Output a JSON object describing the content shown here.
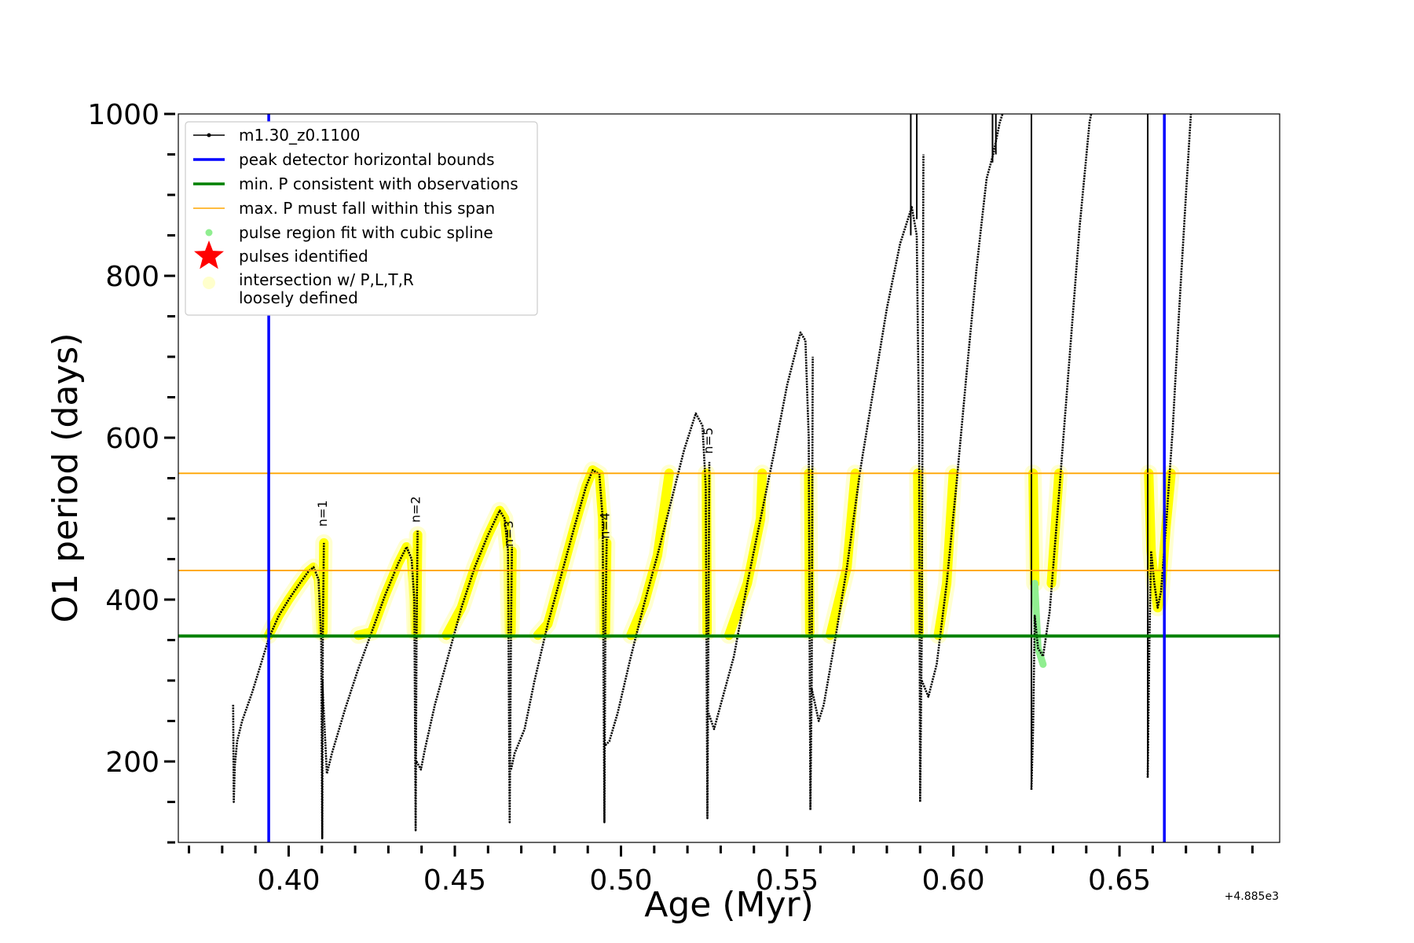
{
  "chart_data": {
    "type": "line",
    "xlabel": "Age (Myr)",
    "ylabel": "O1 period (days)",
    "x_offset_label": "+4.885e3",
    "xlim": [
      0.3668,
      0.6982
    ],
    "ylim": [
      100,
      1000
    ],
    "x_ticks": [
      0.4,
      0.45,
      0.5,
      0.55,
      0.6,
      0.65
    ],
    "x_tick_labels": [
      "0.40",
      "0.45",
      "0.50",
      "0.55",
      "0.60",
      "0.65"
    ],
    "x_minor_ticks": [
      0.37,
      0.38,
      0.39,
      0.41,
      0.42,
      0.43,
      0.44,
      0.46,
      0.47,
      0.48,
      0.49,
      0.51,
      0.52,
      0.53,
      0.54,
      0.56,
      0.57,
      0.58,
      0.59,
      0.61,
      0.62,
      0.63,
      0.64,
      0.66,
      0.67,
      0.68,
      0.69
    ],
    "y_ticks": [
      200,
      400,
      600,
      800,
      1000
    ],
    "y_tick_labels": [
      "200",
      "400",
      "600",
      "800",
      "1000"
    ],
    "y_minor_ticks": [
      100,
      150,
      250,
      300,
      350,
      450,
      500,
      550,
      650,
      700,
      750,
      850,
      900,
      950
    ],
    "legend": {
      "placement": "top-left",
      "entries": [
        {
          "label": "m1.30_z0.1100",
          "kind": "line-dot",
          "color": "#000000"
        },
        {
          "label": "peak detector horizontal bounds",
          "kind": "line",
          "color": "#0000ff"
        },
        {
          "label": "min. P consistent with observations",
          "kind": "line",
          "color": "#008000"
        },
        {
          "label": "max. P must fall within this span",
          "kind": "thin-line",
          "color": "#ffa500"
        },
        {
          "label": "pulse region fit with cubic spline",
          "kind": "dot",
          "color": "#90ee90"
        },
        {
          "label": "pulses identified",
          "kind": "star",
          "color": "#ff0000"
        },
        {
          "label": "intersection w/ P,L,T,R",
          "label2": "loosely defined",
          "kind": "blob",
          "color": "#ffffcc"
        }
      ]
    },
    "vertical_lines": [
      {
        "name": "peak detector horizontal bounds",
        "x": 0.394,
        "color": "#0000ff"
      },
      {
        "name": "peak detector horizontal bounds",
        "x": 0.6635,
        "color": "#0000ff"
      }
    ],
    "horizontal_lines": [
      {
        "name": "min. P consistent with observations",
        "y": 355,
        "color": "#008000"
      },
      {
        "name": "max. P must fall within this span",
        "y": 436,
        "color": "#ffa500"
      },
      {
        "name": "max. P must fall within this span",
        "y": 556,
        "color": "#ffa500"
      }
    ],
    "series": [
      {
        "name": "m1.30_z0.1100",
        "color": "#000000",
        "segments": [
          [
            [
              0.3833,
              270
            ],
            [
              0.3835,
              150
            ],
            [
              0.3838,
              195
            ],
            [
              0.3845,
              225
            ],
            [
              0.386,
              250
            ],
            [
              0.389,
              285
            ],
            [
              0.392,
              325
            ],
            [
              0.394,
              352
            ],
            [
              0.397,
              380
            ],
            [
              0.4,
              400
            ],
            [
              0.403,
              418
            ],
            [
              0.406,
              435
            ],
            [
              0.4075,
              440
            ],
            [
              0.409,
              425
            ],
            [
              0.4098,
              350
            ],
            [
              0.4101,
              105
            ],
            [
              0.4103,
              360
            ],
            [
              0.4106,
              470
            ]
          ],
          [
            [
              0.4101,
              300
            ],
            [
              0.4115,
              185
            ],
            [
              0.413,
              210
            ],
            [
              0.417,
              265
            ],
            [
              0.421,
              315
            ],
            [
              0.425,
              360
            ],
            [
              0.429,
              405
            ],
            [
              0.433,
              445
            ],
            [
              0.4355,
              465
            ],
            [
              0.437,
              450
            ],
            [
              0.4378,
              400
            ],
            [
              0.4382,
              115
            ],
            [
              0.4385,
              360
            ],
            [
              0.4388,
              485
            ]
          ],
          [
            [
              0.4385,
              200
            ],
            [
              0.4398,
              190
            ],
            [
              0.441,
              215
            ],
            [
              0.444,
              270
            ],
            [
              0.448,
              330
            ],
            [
              0.452,
              390
            ],
            [
              0.456,
              440
            ],
            [
              0.46,
              480
            ],
            [
              0.4635,
              510
            ],
            [
              0.465,
              500
            ],
            [
              0.466,
              460
            ],
            [
              0.4665,
              125
            ],
            [
              0.4669,
              360
            ],
            [
              0.4672,
              465
            ]
          ],
          [
            [
              0.4669,
              190
            ],
            [
              0.468,
              210
            ],
            [
              0.471,
              240
            ],
            [
              0.474,
              300
            ],
            [
              0.478,
              370
            ],
            [
              0.482,
              430
            ],
            [
              0.486,
              490
            ],
            [
              0.4895,
              540
            ],
            [
              0.4915,
              560
            ],
            [
              0.4935,
              555
            ],
            [
              0.4945,
              500
            ],
            [
              0.495,
              125
            ],
            [
              0.4953,
              360
            ],
            [
              0.4957,
              475
            ]
          ],
          [
            [
              0.4953,
              220
            ],
            [
              0.4965,
              225
            ],
            [
              0.499,
              260
            ],
            [
              0.503,
              330
            ],
            [
              0.507,
              395
            ],
            [
              0.511,
              455
            ],
            [
              0.515,
              520
            ],
            [
              0.519,
              585
            ],
            [
              0.5225,
              630
            ],
            [
              0.5245,
              615
            ],
            [
              0.5255,
              540
            ],
            [
              0.526,
              130
            ],
            [
              0.5263,
              360
            ],
            [
              0.5266,
              570
            ]
          ],
          [
            [
              0.5263,
              260
            ],
            [
              0.528,
              240
            ],
            [
              0.53,
              270
            ],
            [
              0.534,
              330
            ],
            [
              0.538,
              420
            ],
            [
              0.542,
              500
            ],
            [
              0.546,
              580
            ],
            [
              0.55,
              665
            ],
            [
              0.554,
              730
            ],
            [
              0.5555,
              720
            ],
            [
              0.5565,
              600
            ],
            [
              0.557,
              140
            ],
            [
              0.5574,
              300
            ],
            [
              0.5577,
              700
            ]
          ],
          [
            [
              0.5574,
              290
            ],
            [
              0.5595,
              250
            ],
            [
              0.561,
              270
            ],
            [
              0.564,
              340
            ],
            [
              0.568,
              440
            ],
            [
              0.572,
              560
            ],
            [
              0.576,
              660
            ],
            [
              0.58,
              760
            ],
            [
              0.584,
              840
            ],
            [
              0.5875,
              885
            ],
            [
              0.589,
              850
            ],
            [
              0.5897,
              600
            ],
            [
              0.59,
              150
            ],
            [
              0.5905,
              360
            ],
            [
              0.591,
              950
            ]
          ],
          [
            [
              0.5905,
              300
            ],
            [
              0.5925,
              280
            ],
            [
              0.595,
              320
            ],
            [
              0.598,
              420
            ],
            [
              0.601,
              545
            ],
            [
              0.604,
              680
            ],
            [
              0.607,
              810
            ],
            [
              0.61,
              920
            ],
            [
              0.612,
              950
            ],
            [
              0.613,
              970
            ],
            [
              0.614,
              990
            ],
            [
              0.6148,
              1000
            ]
          ],
          [
            [
              0.6235,
              165
            ],
            [
              0.624,
              240
            ],
            [
              0.6245,
              380
            ],
            [
              0.6255,
              340
            ],
            [
              0.627,
              330
            ],
            [
              0.629,
              385
            ],
            [
              0.632,
              540
            ],
            [
              0.635,
              700
            ],
            [
              0.638,
              860
            ],
            [
              0.641,
              990
            ],
            [
              0.6415,
              1000
            ]
          ],
          [
            [
              0.6585,
              180
            ],
            [
              0.659,
              350
            ],
            [
              0.6595,
              460
            ],
            [
              0.6605,
              420
            ],
            [
              0.6615,
              390
            ],
            [
              0.6625,
              410
            ],
            [
              0.664,
              490
            ],
            [
              0.666,
              610
            ],
            [
              0.668,
              760
            ],
            [
              0.67,
              900
            ],
            [
              0.6715,
              1000
            ]
          ]
        ],
        "spikes": [
          [
            0.5872,
            1000,
            850
          ],
          [
            0.589,
            1000,
            870
          ],
          [
            0.6118,
            1000,
            940
          ],
          [
            0.6128,
            1000,
            950
          ],
          [
            0.6235,
            1000,
            165
          ],
          [
            0.6585,
            1000,
            180
          ]
        ]
      },
      {
        "name": "intersection w/ P,L,T,R loosely defined",
        "color": "#ffff00",
        "segments": [
          [
            [
              0.394,
              356
            ],
            [
              0.397,
              380
            ],
            [
              0.4,
              400
            ],
            [
              0.403,
              418
            ],
            [
              0.406,
              435
            ],
            [
              0.4075,
              440
            ],
            [
              0.409,
              425
            ],
            [
              0.4098,
              360
            ]
          ],
          [
            [
              0.4103,
              360
            ],
            [
              0.4106,
              470
            ]
          ],
          [
            [
              0.421,
              356
            ],
            [
              0.425,
              360
            ],
            [
              0.429,
              405
            ],
            [
              0.433,
              445
            ],
            [
              0.4355,
              465
            ],
            [
              0.437,
              450
            ],
            [
              0.4378,
              400
            ],
            [
              0.4381,
              360
            ]
          ],
          [
            [
              0.4385,
              360
            ],
            [
              0.4388,
              480
            ]
          ],
          [
            [
              0.4475,
              356
            ],
            [
              0.452,
              390
            ],
            [
              0.456,
              440
            ],
            [
              0.46,
              480
            ],
            [
              0.4635,
              510
            ],
            [
              0.465,
              500
            ],
            [
              0.466,
              460
            ],
            [
              0.4664,
              360
            ]
          ],
          [
            [
              0.4669,
              360
            ],
            [
              0.4672,
              460
            ]
          ],
          [
            [
              0.475,
              356
            ],
            [
              0.478,
              370
            ],
            [
              0.482,
              430
            ],
            [
              0.486,
              490
            ],
            [
              0.4895,
              540
            ],
            [
              0.4915,
              560
            ],
            [
              0.4935,
              555
            ],
            [
              0.4945,
              500
            ],
            [
              0.4949,
              360
            ]
          ],
          [
            [
              0.4953,
              360
            ],
            [
              0.4957,
              470
            ]
          ],
          [
            [
              0.503,
              356
            ],
            [
              0.507,
              395
            ],
            [
              0.511,
              455
            ],
            [
              0.5145,
              556
            ]
          ],
          [
            [
              0.5257,
              556
            ],
            [
              0.5259,
              360
            ]
          ],
          [
            [
              0.5325,
              356
            ],
            [
              0.538,
              420
            ],
            [
              0.542,
              500
            ],
            [
              0.5425,
              556
            ]
          ],
          [
            [
              0.5565,
              556
            ],
            [
              0.5568,
              360
            ]
          ],
          [
            [
              0.563,
              356
            ],
            [
              0.568,
              440
            ],
            [
              0.5705,
              556
            ]
          ],
          [
            [
              0.5893,
              556
            ],
            [
              0.5897,
              360
            ]
          ],
          [
            [
              0.5955,
              356
            ],
            [
              0.598,
              420
            ],
            [
              0.6,
              556
            ]
          ],
          [
            [
              0.624,
              556
            ],
            [
              0.6245,
              420
            ]
          ],
          [
            [
              0.6295,
              420
            ],
            [
              0.6318,
              556
            ]
          ],
          [
            [
              0.6588,
              556
            ],
            [
              0.6595,
              460
            ],
            [
              0.6605,
              420
            ],
            [
              0.6615,
              390
            ],
            [
              0.6625,
              410
            ],
            [
              0.664,
              490
            ],
            [
              0.6655,
              556
            ]
          ]
        ]
      },
      {
        "name": "pulse region fit with cubic spline",
        "color": "#90ee90",
        "segments": [
          [
            [
              0.6245,
              420
            ],
            [
              0.6255,
              340
            ],
            [
              0.627,
              320
            ]
          ]
        ]
      }
    ],
    "pulse_labels": [
      {
        "text": "n=1",
        "x": 0.4115,
        "y": 490
      },
      {
        "text": "n=2",
        "x": 0.4395,
        "y": 495
      },
      {
        "text": "n=3",
        "x": 0.4675,
        "y": 465
      },
      {
        "text": "n=4",
        "x": 0.4965,
        "y": 475
      },
      {
        "text": "n=5",
        "x": 0.5275,
        "y": 580
      }
    ]
  }
}
